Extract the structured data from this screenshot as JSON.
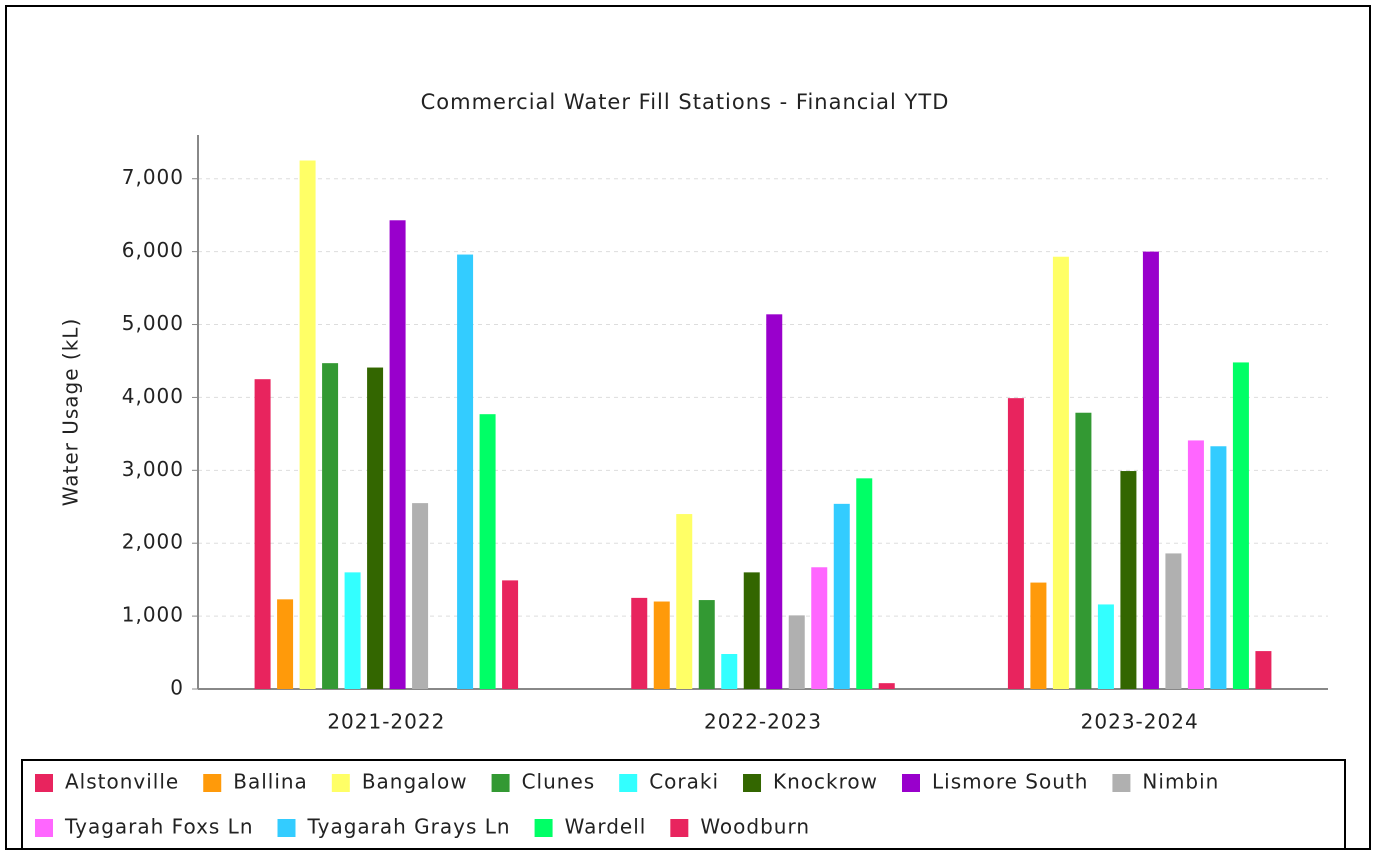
{
  "chart_data": {
    "type": "bar",
    "title": "Commercial Water Fill Stations - Financial YTD",
    "y_label": "Water Usage (kL)",
    "categories": [
      "2021-2022",
      "2022-2023",
      "2023-2024"
    ],
    "series": [
      {
        "name": "Alstonville",
        "color": "#e8245e",
        "values": [
          4250,
          1250,
          3990
        ]
      },
      {
        "name": "Ballina",
        "color": "#ff9a0a",
        "values": [
          1230,
          1200,
          1460
        ]
      },
      {
        "name": "Bangalow",
        "color": "#ffff66",
        "values": [
          7250,
          2400,
          5930
        ]
      },
      {
        "name": "Clunes",
        "color": "#339933",
        "values": [
          4470,
          1220,
          3790
        ]
      },
      {
        "name": "Coraki",
        "color": "#33ffff",
        "values": [
          1600,
          480,
          1160
        ]
      },
      {
        "name": "Knockrow",
        "color": "#336600",
        "values": [
          4410,
          1600,
          2990
        ]
      },
      {
        "name": "Lismore South",
        "color": "#9900cc",
        "values": [
          6430,
          5140,
          6000
        ]
      },
      {
        "name": "Nimbin",
        "color": "#b0b0b0",
        "values": [
          2550,
          1010,
          1860
        ]
      },
      {
        "name": "Tyagarah Foxs Ln",
        "color": "#ff66ff",
        "values": [
          null,
          1670,
          3410
        ]
      },
      {
        "name": "Tyagarah Grays Ln",
        "color": "#33ccff",
        "values": [
          5960,
          2540,
          3330
        ]
      },
      {
        "name": "Wardell",
        "color": "#00ff66",
        "values": [
          3770,
          2890,
          4480
        ]
      },
      {
        "name": "Woodburn",
        "color": "#e8245e",
        "values": [
          1490,
          80,
          520
        ]
      }
    ],
    "ylim": [
      0,
      7600
    ],
    "yticks": [
      0,
      {
        "value": 1000,
        "label": "1,000"
      },
      {
        "value": 2000,
        "label": "2,000"
      },
      {
        "value": 3000,
        "label": "3,000"
      },
      {
        "value": 4000,
        "label": "4,000"
      },
      {
        "value": 5000,
        "label": "5,000"
      },
      {
        "value": 6000,
        "label": "6,000"
      },
      {
        "value": 7000,
        "label": "7,000"
      }
    ],
    "grid": true,
    "legend": "bottom"
  }
}
